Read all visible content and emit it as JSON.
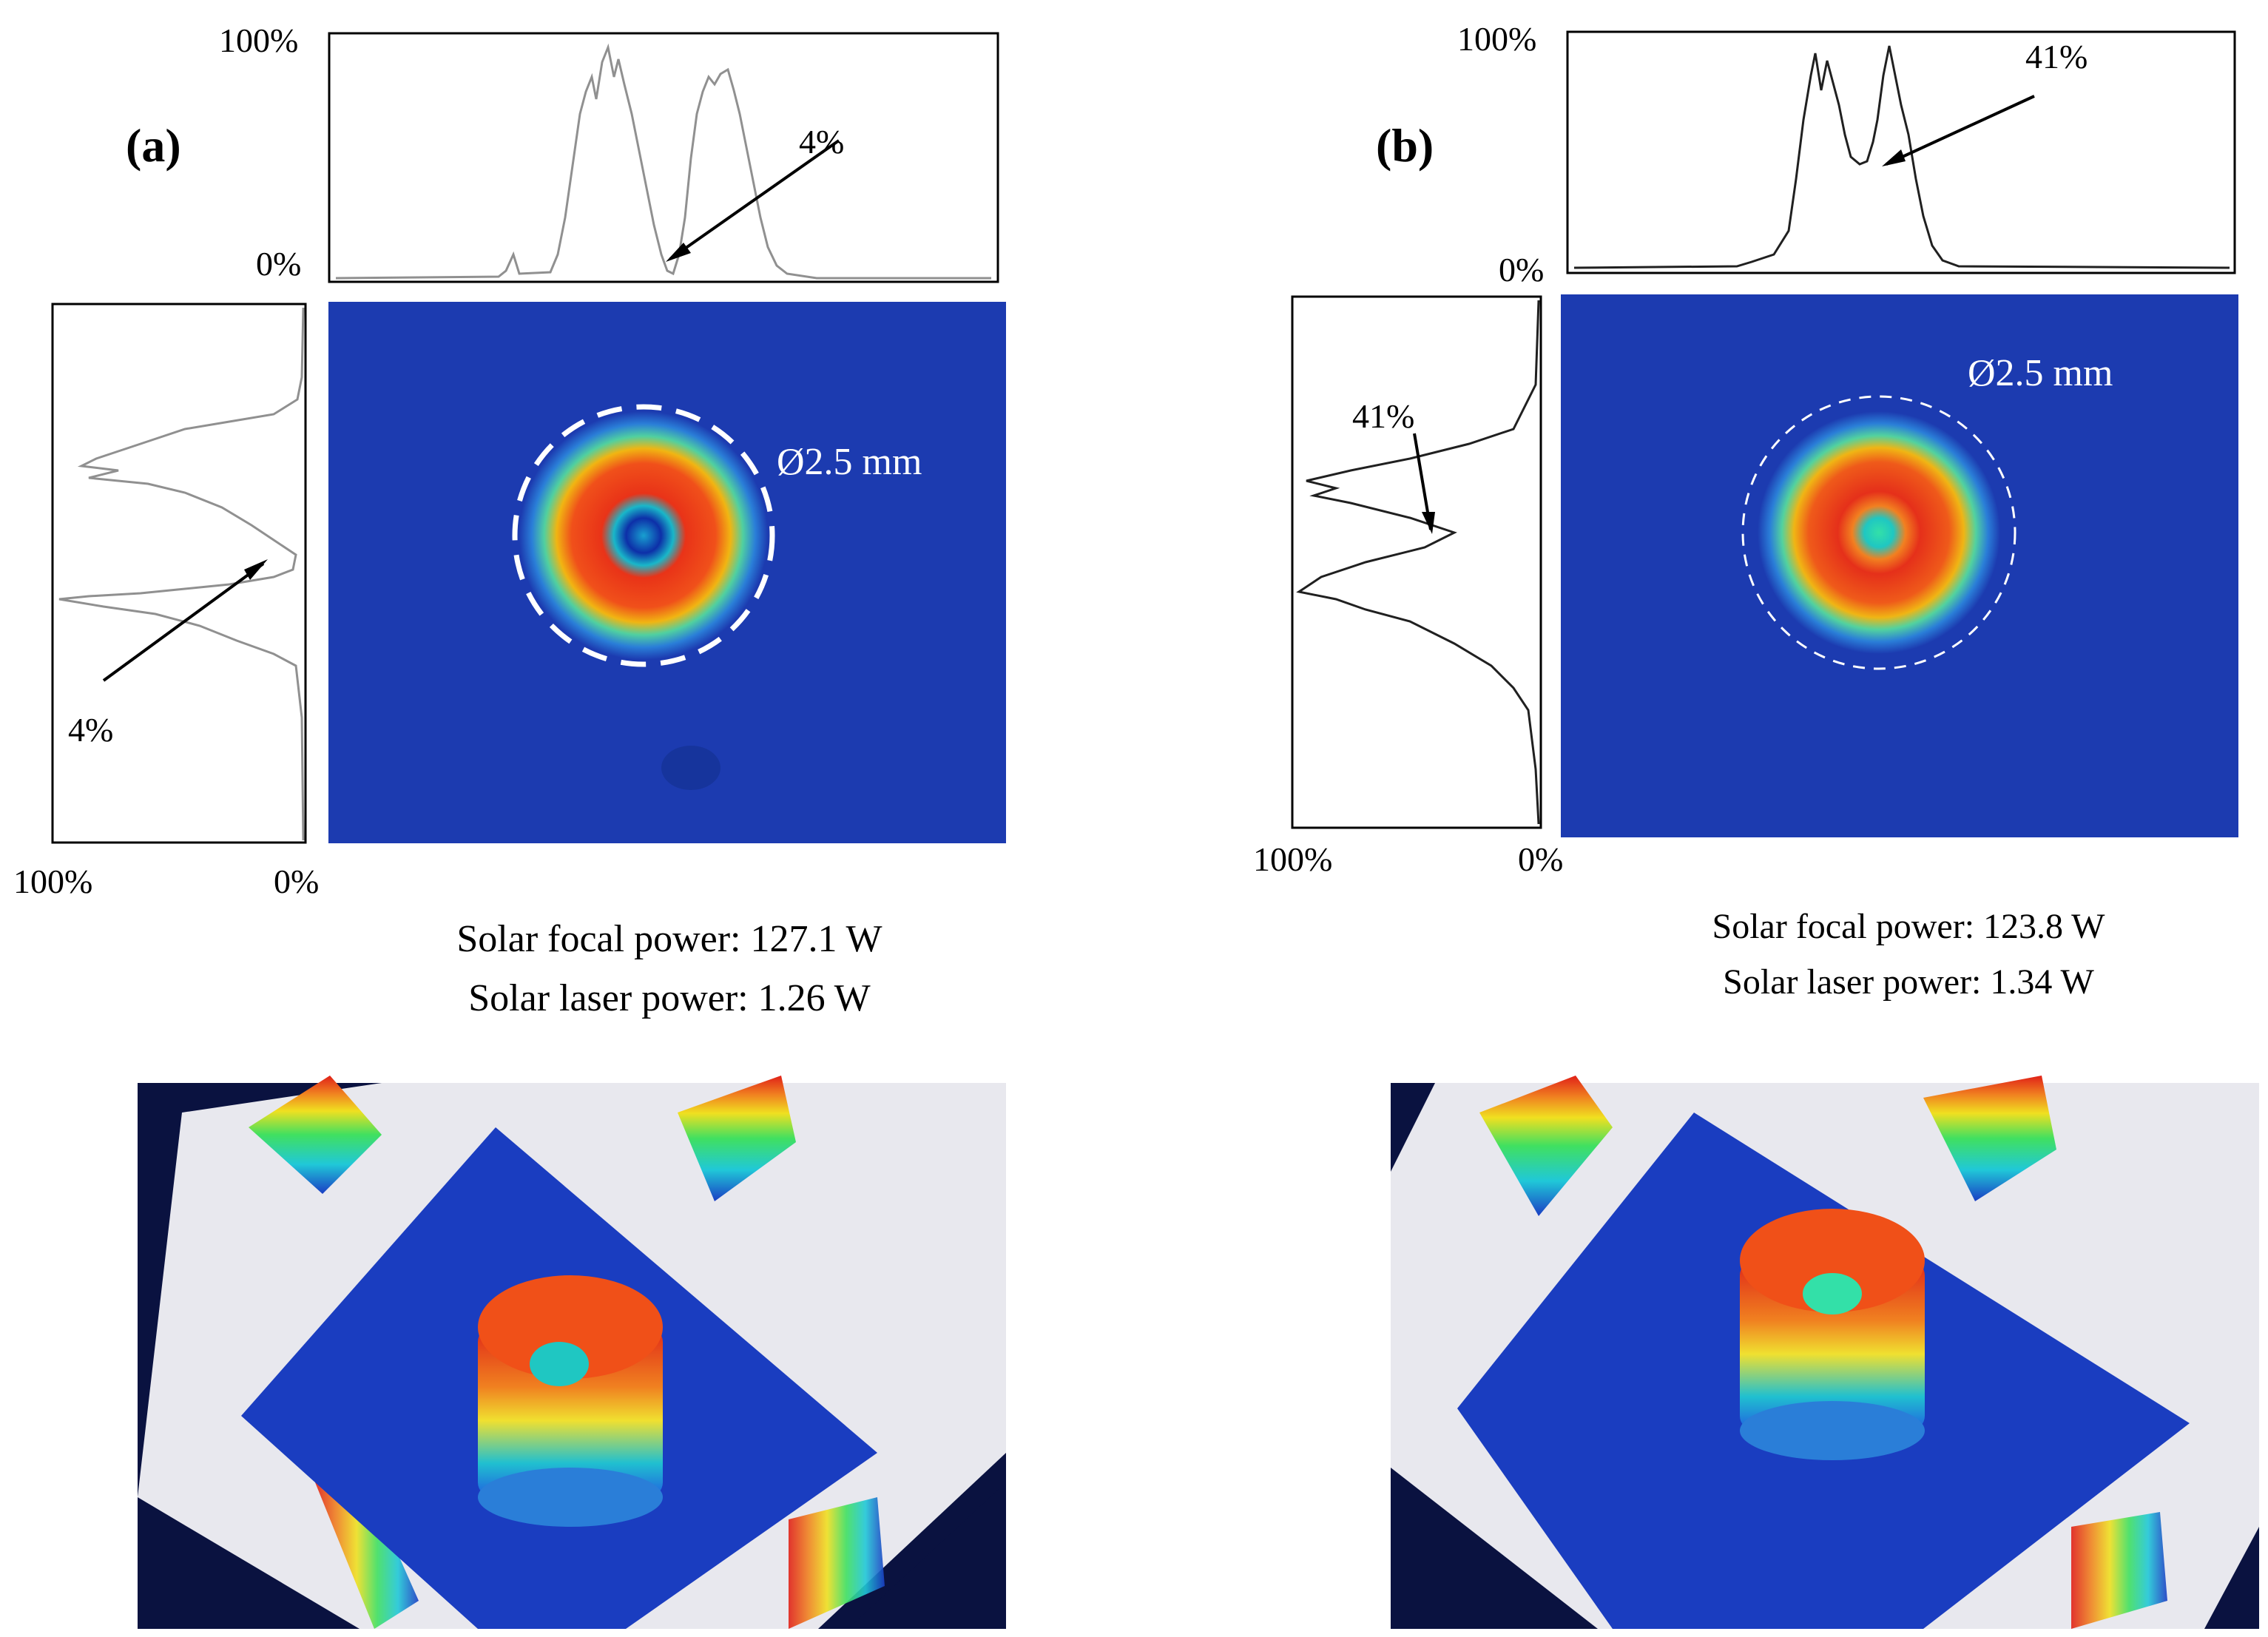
{
  "panels": [
    {
      "id": "a",
      "label": "(a)",
      "profile_top": {
        "max_label": "100%",
        "min_label": "0%"
      },
      "profile_left": {
        "max_label": "100%",
        "min_label": "0%"
      },
      "dip_annotation_top": "4%",
      "dip_annotation_left": "4%",
      "diameter_label": "Ø2.5 mm",
      "focal_power": "Solar focal power: 127.1 W",
      "laser_power": "Solar laser power: 1.26 W"
    },
    {
      "id": "b",
      "label": "(b)",
      "profile_top": {
        "max_label": "100%",
        "min_label": "0%"
      },
      "profile_left": {
        "max_label": "100%",
        "min_label": "0%"
      },
      "dip_annotation_top": "41%",
      "dip_annotation_left": "41%",
      "diameter_label": "Ø2.5 mm",
      "focal_power": "Solar focal power: 123.8 W",
      "laser_power": "Solar laser power: 1.34 W"
    }
  ],
  "colors": {
    "map_background": "#1c3bb0",
    "surface_frame": "#0a1240",
    "plate": "#e8e8ee"
  }
}
